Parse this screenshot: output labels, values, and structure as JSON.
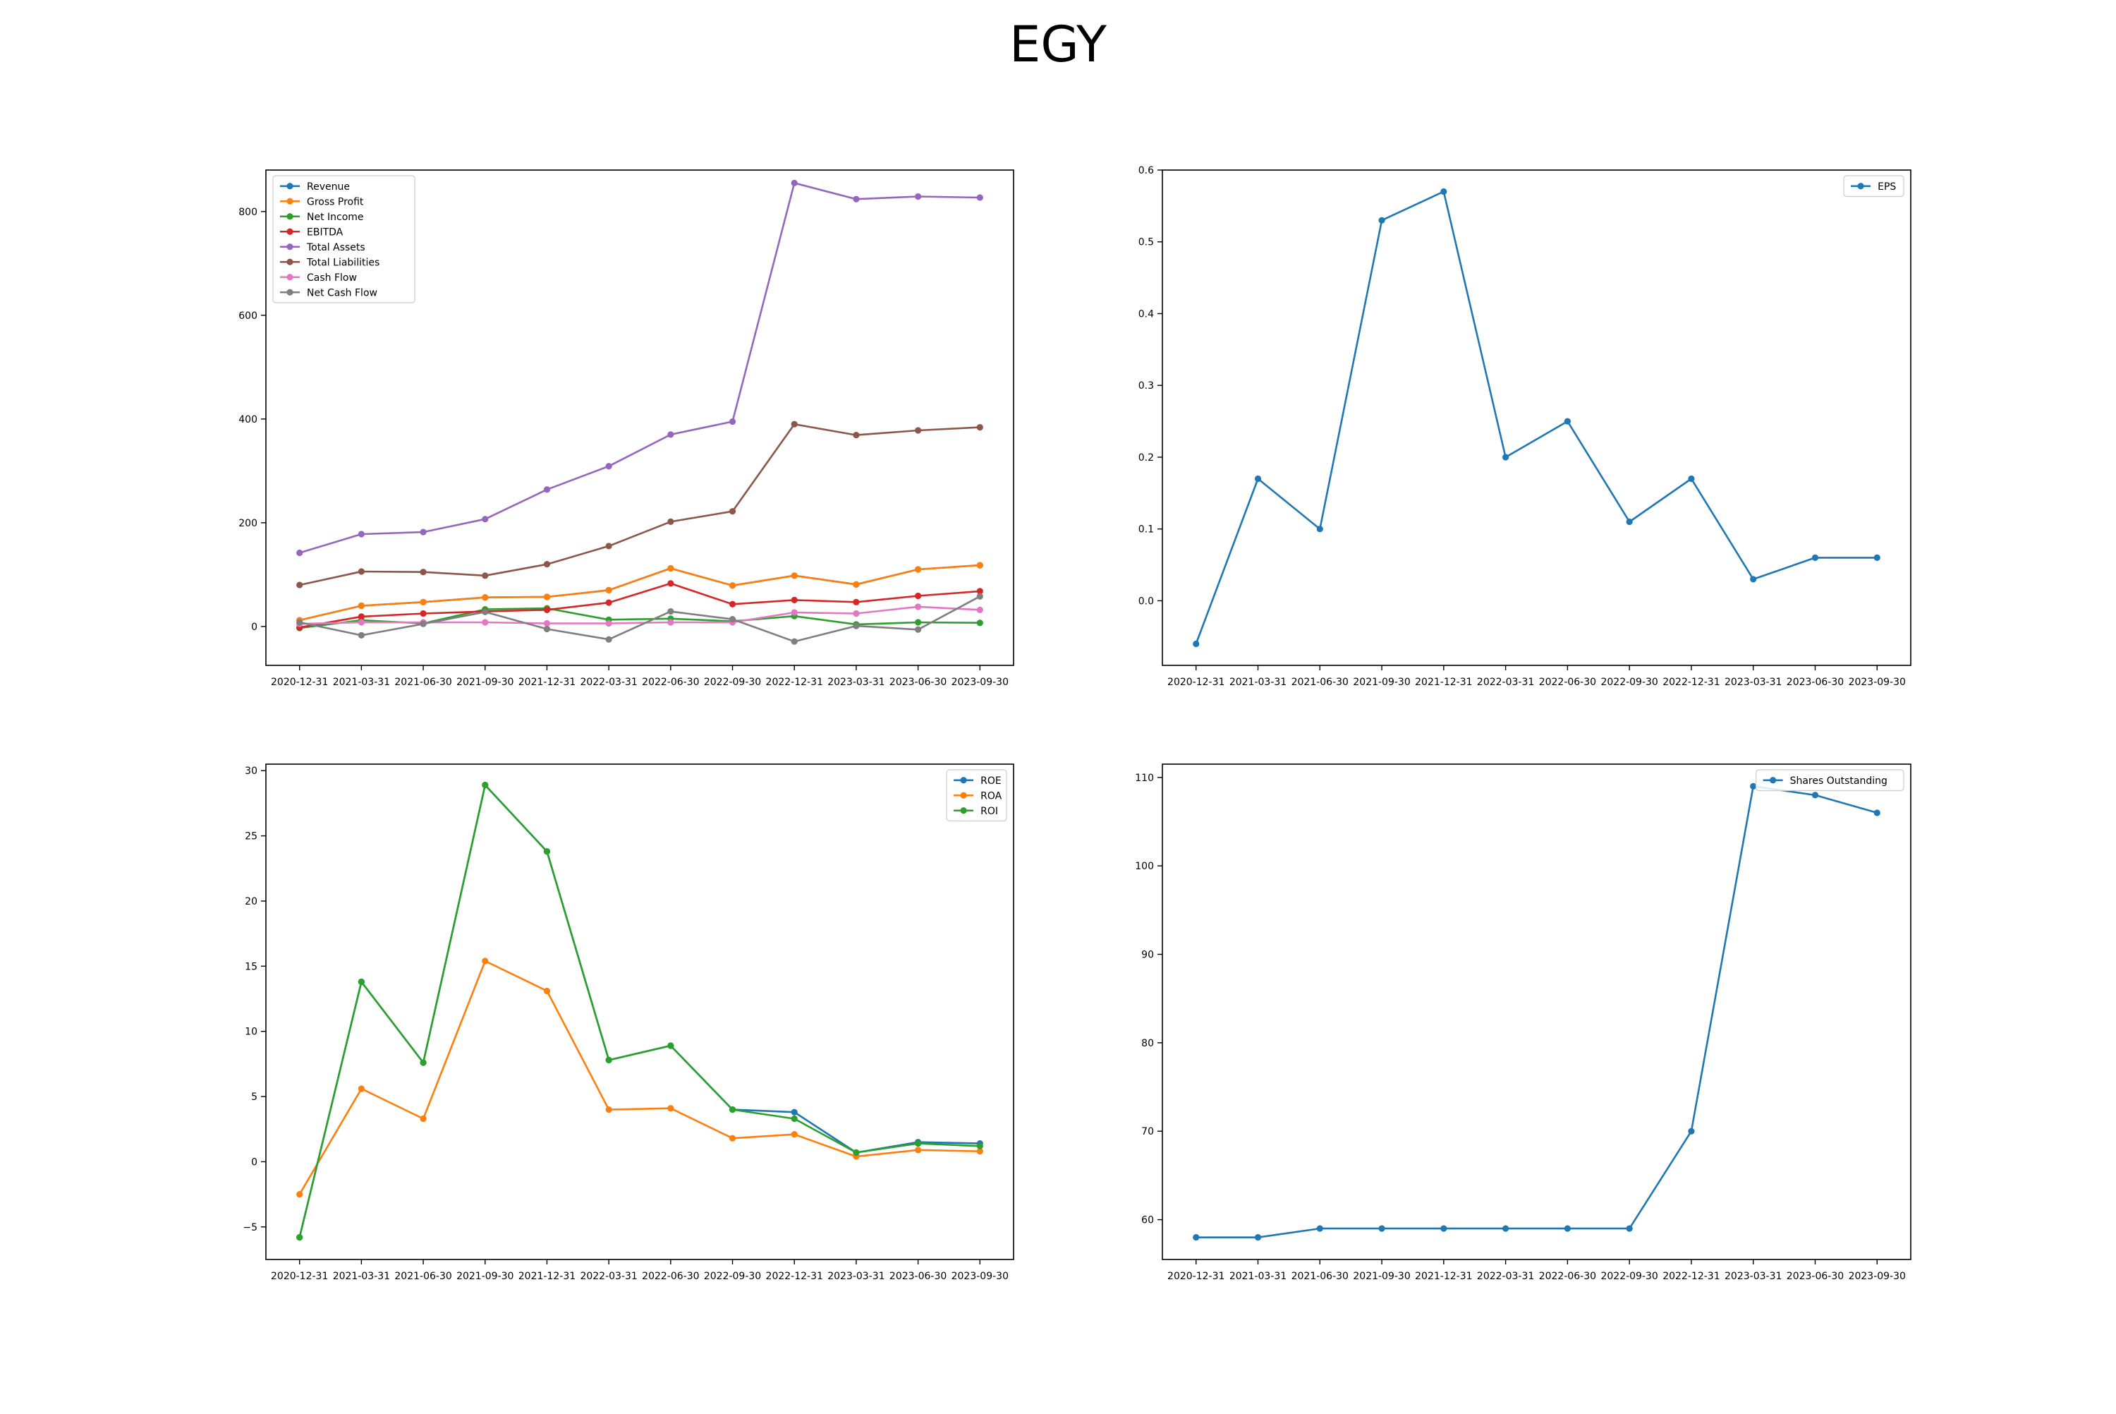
{
  "title": "EGY",
  "chart_data": [
    {
      "type": "line",
      "categories": [
        "2020-12-31",
        "2021-03-31",
        "2021-06-30",
        "2021-09-30",
        "2021-12-31",
        "2022-03-31",
        "2022-06-30",
        "2022-09-30",
        "2022-12-31",
        "2023-03-31",
        "2023-06-30",
        "2023-09-30"
      ],
      "ylim": [
        -75,
        880
      ],
      "yticks": [
        0,
        200,
        400,
        600,
        800
      ],
      "yticklabels": [
        "0",
        "200",
        "400",
        "600",
        "800"
      ],
      "legend": "top-left",
      "series": [
        {
          "name": "Revenue",
          "color": "#1f77b4",
          "values": [
            12,
            40,
            47,
            56,
            57,
            70,
            112,
            79,
            98,
            81,
            110,
            118
          ]
        },
        {
          "name": "Gross Profit",
          "color": "#ff7f0e",
          "values": [
            12,
            40,
            47,
            56,
            57,
            70,
            112,
            79,
            98,
            81,
            110,
            118
          ]
        },
        {
          "name": "Net Income",
          "color": "#2ca02c",
          "values": [
            -3,
            12,
            6,
            33,
            35,
            13,
            15,
            10,
            20,
            4,
            8,
            7
          ]
        },
        {
          "name": "EBITDA",
          "color": "#d62728",
          "values": [
            -2,
            19,
            25,
            29,
            32,
            46,
            83,
            43,
            51,
            47,
            59,
            68
          ]
        },
        {
          "name": "Total Assets",
          "color": "#9467bd",
          "values": [
            142,
            178,
            182,
            207,
            264,
            309,
            370,
            395,
            855,
            824,
            829,
            827
          ]
        },
        {
          "name": "Total Liabilities",
          "color": "#8c564b",
          "values": [
            80,
            106,
            105,
            98,
            120,
            155,
            202,
            222,
            390,
            369,
            378,
            384
          ]
        },
        {
          "name": "Cash Flow",
          "color": "#e377c2",
          "values": [
            5,
            8,
            8,
            8,
            6,
            6,
            8,
            8,
            27,
            25,
            38,
            32
          ]
        },
        {
          "name": "Net Cash Flow",
          "color": "#7f7f7f",
          "values": [
            8,
            -17,
            5,
            28,
            -5,
            -25,
            29,
            14,
            -29,
            1,
            -6,
            58
          ]
        }
      ]
    },
    {
      "type": "line",
      "categories": [
        "2020-12-31",
        "2021-03-31",
        "2021-06-30",
        "2021-09-30",
        "2021-12-31",
        "2022-03-31",
        "2022-06-30",
        "2022-09-30",
        "2022-12-31",
        "2023-03-31",
        "2023-06-30",
        "2023-09-30"
      ],
      "ylim": [
        -0.09,
        0.6
      ],
      "yticks": [
        0.0,
        0.1,
        0.2,
        0.3,
        0.4,
        0.5,
        0.6
      ],
      "yticklabels": [
        "0.0",
        "0.1",
        "0.2",
        "0.3",
        "0.4",
        "0.5",
        "0.6"
      ],
      "legend": "top-right",
      "series": [
        {
          "name": "EPS",
          "color": "#1f77b4",
          "values": [
            -0.06,
            0.17,
            0.1,
            0.53,
            0.57,
            0.2,
            0.25,
            0.11,
            0.17,
            0.03,
            0.06,
            0.06
          ]
        }
      ]
    },
    {
      "type": "line",
      "categories": [
        "2020-12-31",
        "2021-03-31",
        "2021-06-30",
        "2021-09-30",
        "2021-12-31",
        "2022-03-31",
        "2022-06-30",
        "2022-09-30",
        "2022-12-31",
        "2023-03-31",
        "2023-06-30",
        "2023-09-30"
      ],
      "ylim": [
        -7.5,
        30.5
      ],
      "yticks": [
        -5,
        0,
        5,
        10,
        15,
        20,
        25,
        30
      ],
      "yticklabels": [
        "−5",
        "0",
        "5",
        "10",
        "15",
        "20",
        "25",
        "30"
      ],
      "legend": "top-right",
      "series": [
        {
          "name": "ROE",
          "color": "#1f77b4",
          "values": [
            -5.8,
            13.8,
            7.6,
            28.9,
            23.8,
            7.8,
            8.9,
            4.0,
            3.8,
            0.7,
            1.5,
            1.4
          ]
        },
        {
          "name": "ROA",
          "color": "#ff7f0e",
          "values": [
            -2.5,
            5.6,
            3.3,
            15.4,
            13.1,
            4.0,
            4.1,
            1.8,
            2.1,
            0.4,
            0.9,
            0.8
          ]
        },
        {
          "name": "ROI",
          "color": "#2ca02c",
          "values": [
            -5.8,
            13.8,
            7.6,
            28.9,
            23.8,
            7.8,
            8.9,
            4.0,
            3.3,
            0.7,
            1.4,
            1.2
          ]
        }
      ]
    },
    {
      "type": "line",
      "categories": [
        "2020-12-31",
        "2021-03-31",
        "2021-06-30",
        "2021-09-30",
        "2021-12-31",
        "2022-03-31",
        "2022-06-30",
        "2022-09-30",
        "2022-12-31",
        "2023-03-31",
        "2023-06-30",
        "2023-09-30"
      ],
      "ylim": [
        55.5,
        111.5
      ],
      "yticks": [
        60,
        70,
        80,
        90,
        100,
        110
      ],
      "yticklabels": [
        "60",
        "70",
        "80",
        "90",
        "100",
        "110"
      ],
      "legend": "top-right",
      "series": [
        {
          "name": "Shares Outstanding",
          "color": "#1f77b4",
          "values": [
            58,
            58,
            59,
            59,
            59,
            59,
            59,
            59,
            70,
            109,
            108,
            106
          ]
        }
      ]
    }
  ]
}
